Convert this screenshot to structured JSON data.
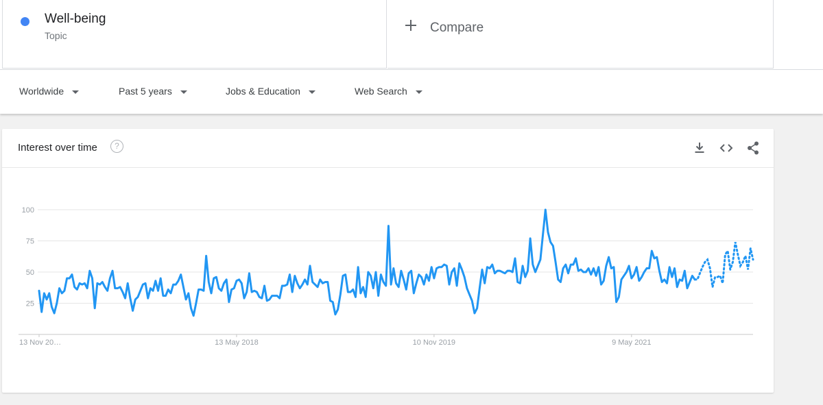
{
  "term": {
    "name": "Well-being",
    "type": "Topic",
    "color": "#4285f4"
  },
  "compare": {
    "label": "Compare",
    "icon": "plus-icon"
  },
  "filters": [
    {
      "label": "Worldwide"
    },
    {
      "label": "Past 5 years"
    },
    {
      "label": "Jobs & Education"
    },
    {
      "label": "Web Search"
    }
  ],
  "chart_card": {
    "title": "Interest over time",
    "help_icon": "help-icon",
    "actions": [
      "download-icon",
      "embed-code-icon",
      "share-icon"
    ]
  },
  "chart_data": {
    "type": "line",
    "title": "Interest over time",
    "xlabel": "",
    "ylabel": "",
    "ylim": [
      0,
      100
    ],
    "yticks": [
      25,
      50,
      75,
      100
    ],
    "x_tick_labels": [
      "13 Nov 20…",
      "13 May 2018",
      "10 Nov 2019",
      "9 May 2021"
    ],
    "x_tick_indices": [
      0,
      78,
      156,
      234
    ],
    "grid": true,
    "legend": "none",
    "series_color": "#2196f3",
    "partial_data_from_index": 259,
    "series": [
      {
        "values": [
          35,
          18,
          33,
          28,
          33,
          22,
          17,
          25,
          37,
          33,
          35,
          45,
          45,
          48,
          38,
          36,
          41,
          40,
          41,
          37,
          51,
          45,
          21,
          41,
          40,
          42,
          38,
          35,
          45,
          51,
          37,
          37,
          38,
          34,
          29,
          41,
          29,
          19,
          28,
          30,
          35,
          40,
          41,
          29,
          37,
          35,
          43,
          35,
          45,
          31,
          31,
          36,
          33,
          40,
          40,
          43,
          48,
          38,
          28,
          33,
          21,
          15,
          25,
          36,
          36,
          35,
          63,
          42,
          33,
          45,
          46,
          37,
          35,
          41,
          44,
          26,
          36,
          37,
          43,
          44,
          41,
          29,
          34,
          49,
          34,
          35,
          34,
          30,
          29,
          39,
          27,
          28,
          31,
          31,
          31,
          29,
          39,
          39,
          40,
          48,
          34,
          47,
          41,
          37,
          40,
          44,
          40,
          55,
          42,
          40,
          38,
          44,
          41,
          42,
          42,
          27,
          26,
          16,
          20,
          32,
          47,
          48,
          34,
          34,
          36,
          30,
          54,
          33,
          38,
          30,
          50,
          47,
          37,
          50,
          31,
          48,
          42,
          39,
          87,
          40,
          53,
          41,
          38,
          51,
          44,
          36,
          49,
          51,
          33,
          41,
          48,
          46,
          40,
          48,
          43,
          54,
          45,
          53,
          54,
          54,
          56,
          55,
          40,
          50,
          53,
          39,
          57,
          52,
          46,
          37,
          32,
          27,
          17,
          21,
          37,
          52,
          41,
          54,
          53,
          56,
          49,
          51,
          51,
          50,
          49,
          51,
          51,
          50,
          61,
          42,
          41,
          55,
          46,
          51,
          77,
          56,
          50,
          55,
          60,
          80,
          100,
          82,
          74,
          71,
          58,
          44,
          42,
          53,
          56,
          49,
          56,
          56,
          61,
          51,
          52,
          50,
          50,
          53,
          48,
          53,
          47,
          54,
          40,
          43,
          55,
          62,
          53,
          54,
          26,
          30,
          44,
          47,
          50,
          55,
          45,
          48,
          54,
          43,
          46,
          50,
          53,
          53,
          67,
          61,
          62,
          51,
          42,
          44,
          41,
          54,
          46,
          53,
          38,
          44,
          43,
          51,
          37,
          42,
          47,
          44,
          44,
          49,
          54,
          58,
          60,
          53,
          38,
          46,
          46,
          47,
          41,
          64,
          67,
          52,
          58,
          74,
          64,
          55,
          58,
          63,
          52,
          69,
          60
        ]
      }
    ]
  }
}
